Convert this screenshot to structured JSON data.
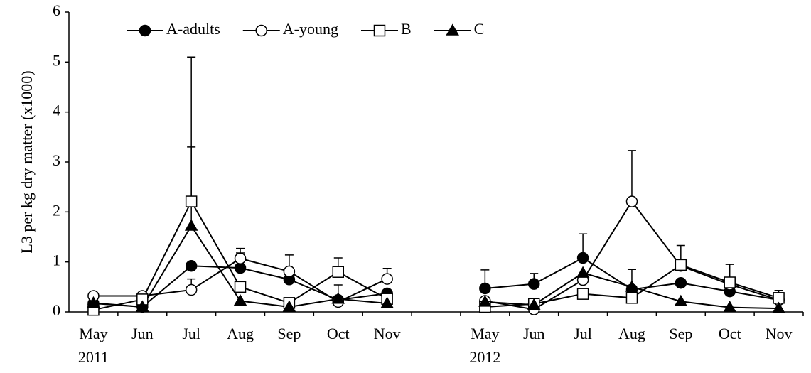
{
  "chart_data": {
    "type": "line",
    "y_label": "L3  per kg dry matter (x1000)",
    "categories": [
      "May",
      "Jun",
      "Jul",
      "Aug",
      "Sep",
      "Oct",
      "Nov",
      null,
      "May",
      "Jun",
      "Jul",
      "Aug",
      "Sep",
      "Oct",
      "Nov"
    ],
    "x_group_labels": [
      "2011",
      "2012"
    ],
    "ylim": [
      0,
      6
    ],
    "yticks": [
      0,
      1,
      2,
      3,
      4,
      5,
      6
    ],
    "legend": "top",
    "series": [
      {
        "name": "A-adults",
        "color": "#000000",
        "marker": "circle-filled",
        "values": [
          0.17,
          0.1,
          0.92,
          0.88,
          0.65,
          0.24,
          0.37,
          null,
          0.47,
          0.56,
          1.08,
          0.45,
          0.58,
          0.41,
          0.24
        ],
        "errors": [
          null,
          null,
          null,
          0.3,
          null,
          null,
          null,
          null,
          0.37,
          0.21,
          0.48,
          null,
          null,
          null,
          null
        ]
      },
      {
        "name": "A-young",
        "color": "#000000",
        "marker": "circle-open",
        "values": [
          0.32,
          0.32,
          0.44,
          1.07,
          0.81,
          0.2,
          0.66,
          null,
          0.22,
          0.05,
          0.64,
          2.21,
          0.92,
          0.55,
          0.24
        ],
        "errors": [
          null,
          null,
          0.22,
          0.2,
          0.33,
          null,
          0.21,
          null,
          null,
          null,
          null,
          1.02,
          null,
          null,
          null
        ]
      },
      {
        "name": "B",
        "color": "#000000",
        "marker": "square-open",
        "values": [
          0.04,
          0.25,
          2.21,
          0.5,
          0.18,
          0.8,
          0.26,
          null,
          0.1,
          0.16,
          0.36,
          0.28,
          0.94,
          0.59,
          0.28
        ],
        "errors": [
          null,
          null,
          2.89,
          null,
          null,
          0.28,
          null,
          null,
          null,
          null,
          null,
          null,
          0.39,
          0.36,
          0.15
        ]
      },
      {
        "name": "C",
        "color": "#000000",
        "marker": "triangle-filled",
        "values": [
          0.18,
          0.1,
          1.72,
          0.22,
          0.1,
          0.26,
          0.17,
          null,
          0.2,
          0.14,
          0.78,
          0.5,
          0.21,
          0.09,
          0.07
        ],
        "errors": [
          null,
          null,
          1.58,
          null,
          null,
          0.28,
          null,
          null,
          null,
          null,
          null,
          0.35,
          null,
          null,
          null
        ]
      }
    ]
  }
}
